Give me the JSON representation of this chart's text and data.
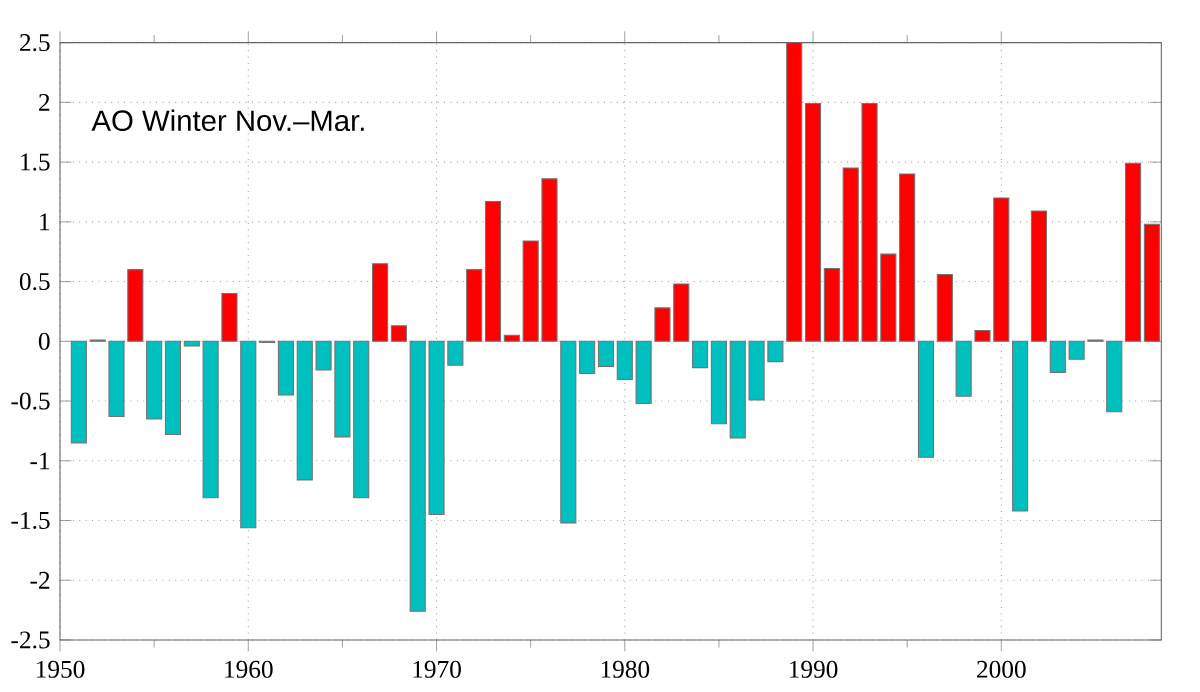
{
  "chart_data": {
    "type": "bar",
    "title": "AO Winter Nov.–Mar.",
    "x": [
      1951,
      1952,
      1953,
      1954,
      1955,
      1956,
      1957,
      1958,
      1959,
      1960,
      1961,
      1962,
      1963,
      1964,
      1965,
      1966,
      1967,
      1968,
      1969,
      1970,
      1971,
      1972,
      1973,
      1974,
      1975,
      1976,
      1977,
      1978,
      1979,
      1980,
      1981,
      1982,
      1983,
      1984,
      1985,
      1986,
      1987,
      1988,
      1989,
      1990,
      1991,
      1992,
      1993,
      1994,
      1995,
      1996,
      1997,
      1998,
      1999,
      2000,
      2001,
      2002,
      2003,
      2004,
      2005,
      2006,
      2007,
      2008
    ],
    "values": [
      -0.85,
      0.01,
      -0.63,
      0.6,
      -0.65,
      -0.78,
      -0.04,
      -1.31,
      0.4,
      -1.56,
      -0.01,
      -0.45,
      -1.16,
      -0.24,
      -0.8,
      -1.31,
      0.65,
      0.13,
      -2.26,
      -1.45,
      -0.2,
      0.6,
      1.17,
      0.05,
      0.84,
      1.36,
      -1.52,
      -0.27,
      -0.21,
      -0.32,
      -0.52,
      0.28,
      0.48,
      -0.22,
      -0.69,
      -0.81,
      -0.49,
      -0.17,
      2.5,
      1.99,
      0.61,
      1.45,
      1.99,
      0.73,
      1.4,
      -0.97,
      0.56,
      -0.46,
      0.09,
      1.2,
      -1.42,
      1.09,
      -0.26,
      -0.15,
      0.01,
      -0.59,
      1.49,
      0.98
    ],
    "colors": [
      "#00bfbf",
      "#ff0000",
      "#00bfbf",
      "#ff0000",
      "#00bfbf",
      "#00bfbf",
      "#00bfbf",
      "#00bfbf",
      "#ff0000",
      "#00bfbf",
      "#00bfbf",
      "#00bfbf",
      "#00bfbf",
      "#00bfbf",
      "#00bfbf",
      "#00bfbf",
      "#ff0000",
      "#ff0000",
      "#00bfbf",
      "#00bfbf",
      "#00bfbf",
      "#ff0000",
      "#ff0000",
      "#ff0000",
      "#ff0000",
      "#ff0000",
      "#00bfbf",
      "#00bfbf",
      "#00bfbf",
      "#00bfbf",
      "#00bfbf",
      "#ff0000",
      "#ff0000",
      "#00bfbf",
      "#00bfbf",
      "#00bfbf",
      "#00bfbf",
      "#00bfbf",
      "#ff0000",
      "#ff0000",
      "#ff0000",
      "#ff0000",
      "#ff0000",
      "#ff0000",
      "#ff0000",
      "#00bfbf",
      "#ff0000",
      "#00bfbf",
      "#ff0000",
      "#ff0000",
      "#00bfbf",
      "#ff0000",
      "#00bfbf",
      "#00bfbf",
      "#ff0000",
      "#00bfbf",
      "#ff0000",
      "#ff0000"
    ],
    "xlim": [
      1950,
      2008.5
    ],
    "xticks": [
      1950,
      1960,
      1970,
      1980,
      1990,
      2000
    ],
    "ylim": [
      -2.5,
      2.5
    ],
    "yticks": [
      -2.5,
      -2,
      -1.5,
      -1,
      -0.5,
      0,
      0.5,
      1,
      1.5,
      2,
      2.5
    ],
    "grid": true
  }
}
